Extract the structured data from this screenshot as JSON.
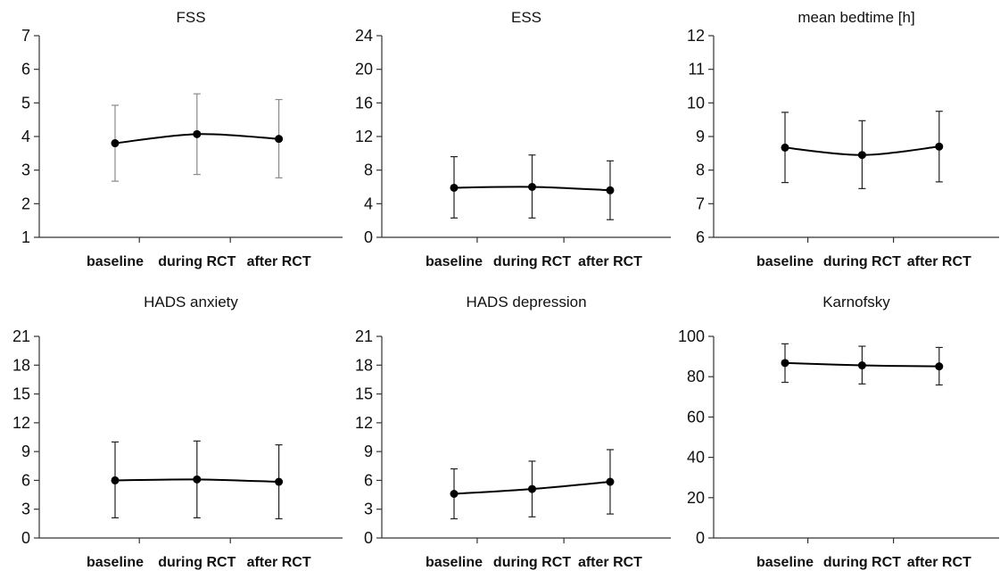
{
  "chart_data": [
    {
      "type": "line",
      "title": "FSS",
      "categories": [
        "baseline",
        "during RCT",
        "after RCT"
      ],
      "values": [
        3.8,
        4.07,
        3.93
      ],
      "error_low": [
        2.67,
        2.87,
        2.77
      ],
      "error_high": [
        4.93,
        5.27,
        5.1
      ],
      "ylim": [
        1,
        7
      ],
      "yticks": [
        1,
        2,
        3,
        4,
        5,
        6,
        7
      ],
      "error_bar_color": "#8a8a8a"
    },
    {
      "type": "line",
      "title": "ESS",
      "categories": [
        "baseline",
        "during RCT",
        "after RCT"
      ],
      "values": [
        5.9,
        6.0,
        5.6
      ],
      "error_low": [
        2.3,
        2.3,
        2.1
      ],
      "error_high": [
        9.6,
        9.8,
        9.1
      ],
      "ylim": [
        0,
        24
      ],
      "yticks": [
        0,
        4,
        8,
        12,
        16,
        20,
        24
      ],
      "error_bar_color": "#222222"
    },
    {
      "type": "line",
      "title": "mean bedtime [h]",
      "categories": [
        "baseline",
        "during RCT",
        "after RCT"
      ],
      "values": [
        8.67,
        8.45,
        8.7
      ],
      "error_low": [
        7.63,
        7.45,
        7.65
      ],
      "error_high": [
        9.72,
        9.47,
        9.75
      ],
      "ylim": [
        6,
        12
      ],
      "yticks": [
        6,
        7,
        8,
        9,
        10,
        11,
        12
      ],
      "error_bar_color": "#222222"
    },
    {
      "type": "line",
      "title": "HADS anxiety",
      "categories": [
        "baseline",
        "during RCT",
        "after RCT"
      ],
      "values": [
        6.0,
        6.1,
        5.85
      ],
      "error_low": [
        2.1,
        2.1,
        2.0
      ],
      "error_high": [
        10.0,
        10.1,
        9.7
      ],
      "ylim": [
        0,
        21
      ],
      "yticks": [
        0,
        3,
        6,
        9,
        12,
        15,
        18,
        21
      ],
      "error_bar_color": "#222222"
    },
    {
      "type": "line",
      "title": "HADS depression",
      "categories": [
        "baseline",
        "during RCT",
        "after RCT"
      ],
      "values": [
        4.6,
        5.1,
        5.85
      ],
      "error_low": [
        2.0,
        2.2,
        2.5
      ],
      "error_high": [
        7.2,
        8.0,
        9.2
      ],
      "ylim": [
        0,
        21
      ],
      "yticks": [
        0,
        3,
        6,
        9,
        12,
        15,
        18,
        21
      ],
      "error_bar_color": "#222222"
    },
    {
      "type": "line",
      "title": "Karnofsky",
      "categories": [
        "baseline",
        "during RCT",
        "after RCT"
      ],
      "values": [
        86.8,
        85.6,
        85.1
      ],
      "error_low": [
        77.2,
        76.4,
        75.9
      ],
      "error_high": [
        96.3,
        95.1,
        94.5
      ],
      "ylim": [
        0,
        100
      ],
      "yticks": [
        0,
        20,
        40,
        60,
        80,
        100
      ],
      "error_bar_color": "#222222"
    }
  ],
  "colors": {
    "line": "#000000",
    "marker": "#000000",
    "axis": "#333333"
  }
}
